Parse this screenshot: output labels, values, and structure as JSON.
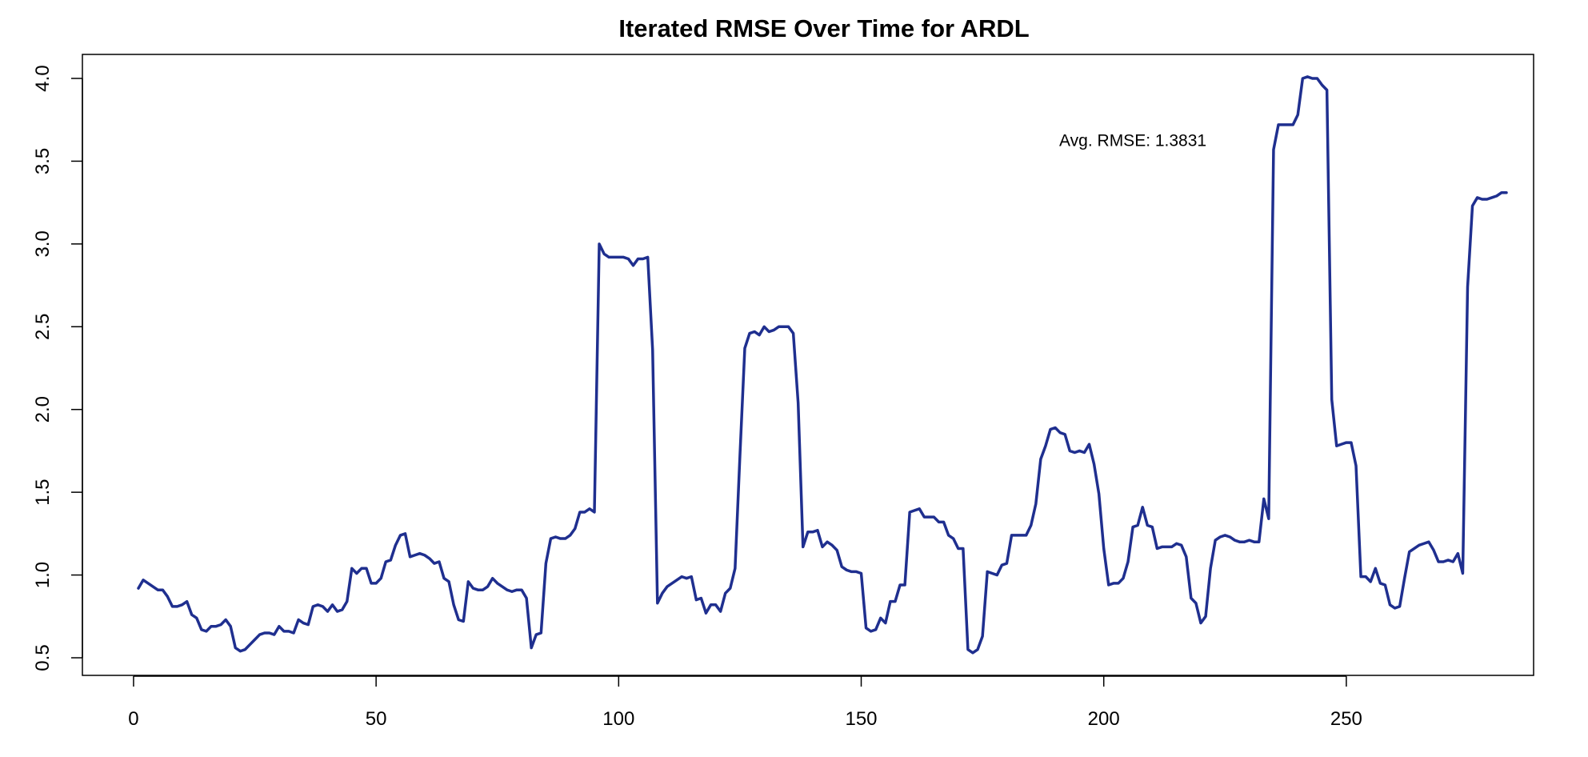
{
  "chart_data": {
    "type": "line",
    "title": "Iterated RMSE Over Time for ARDL",
    "xlabel": "",
    "ylabel": "",
    "xlim": [
      1,
      283
    ],
    "ylim": [
      0.5,
      4.0
    ],
    "x_ticks": [
      0,
      50,
      100,
      150,
      200,
      250
    ],
    "x_tick_labels": [
      "0",
      "50",
      "100",
      "150",
      "200",
      "250"
    ],
    "y_ticks": [
      0.5,
      1.0,
      1.5,
      2.0,
      2.5,
      3.0,
      3.5,
      4.0
    ],
    "y_tick_labels": [
      "0.5",
      "1.0",
      "1.5",
      "2.0",
      "2.5",
      "3.0",
      "3.5",
      "4.0"
    ],
    "grid": false,
    "legend": "none",
    "annotation": {
      "text": "Avg. RMSE: 1.3831",
      "x": 206,
      "y": 3.63
    },
    "series": [
      {
        "color": "#1f2f8f",
        "x_start": 1,
        "values": [
          0.92,
          0.97,
          0.95,
          0.93,
          0.91,
          0.91,
          0.87,
          0.81,
          0.81,
          0.82,
          0.84,
          0.76,
          0.74,
          0.67,
          0.66,
          0.69,
          0.69,
          0.7,
          0.73,
          0.69,
          0.56,
          0.54,
          0.55,
          0.58,
          0.61,
          0.64,
          0.65,
          0.65,
          0.64,
          0.69,
          0.66,
          0.66,
          0.65,
          0.73,
          0.71,
          0.7,
          0.81,
          0.82,
          0.81,
          0.78,
          0.82,
          0.78,
          0.79,
          0.84,
          1.04,
          1.01,
          1.04,
          1.04,
          0.95,
          0.95,
          0.98,
          1.08,
          1.09,
          1.18,
          1.24,
          1.25,
          1.11,
          1.12,
          1.13,
          1.12,
          1.1,
          1.07,
          1.08,
          0.98,
          0.96,
          0.82,
          0.73,
          0.72,
          0.96,
          0.92,
          0.91,
          0.91,
          0.93,
          0.98,
          0.95,
          0.93,
          0.91,
          0.9,
          0.91,
          0.91,
          0.86,
          0.56,
          0.64,
          0.65,
          1.07,
          1.22,
          1.23,
          1.22,
          1.22,
          1.24,
          1.28,
          1.38,
          1.38,
          1.4,
          1.38,
          3.0,
          2.94,
          2.92,
          2.92,
          2.92,
          2.92,
          2.91,
          2.87,
          2.91,
          2.91,
          2.92,
          2.36,
          0.83,
          0.89,
          0.93,
          0.95,
          0.97,
          0.99,
          0.98,
          0.99,
          0.85,
          0.86,
          0.77,
          0.82,
          0.82,
          0.78,
          0.89,
          0.92,
          1.04,
          1.72,
          2.37,
          2.46,
          2.47,
          2.45,
          2.5,
          2.47,
          2.48,
          2.5,
          2.5,
          2.5,
          2.46,
          2.04,
          1.17,
          1.26,
          1.26,
          1.27,
          1.17,
          1.2,
          1.18,
          1.15,
          1.05,
          1.03,
          1.02,
          1.02,
          1.01,
          0.68,
          0.66,
          0.67,
          0.74,
          0.71,
          0.84,
          0.84,
          0.94,
          0.94,
          1.38,
          1.39,
          1.4,
          1.35,
          1.35,
          1.35,
          1.32,
          1.32,
          1.24,
          1.22,
          1.16,
          1.16,
          0.55,
          0.53,
          0.55,
          0.63,
          1.02,
          1.01,
          1.0,
          1.06,
          1.07,
          1.24,
          1.24,
          1.24,
          1.24,
          1.3,
          1.43,
          1.7,
          1.78,
          1.88,
          1.89,
          1.86,
          1.85,
          1.75,
          1.74,
          1.75,
          1.74,
          1.79,
          1.67,
          1.49,
          1.16,
          0.94,
          0.95,
          0.95,
          0.98,
          1.08,
          1.29,
          1.3,
          1.41,
          1.3,
          1.29,
          1.16,
          1.17,
          1.17,
          1.17,
          1.19,
          1.18,
          1.11,
          0.86,
          0.83,
          0.71,
          0.75,
          1.04,
          1.21,
          1.23,
          1.24,
          1.23,
          1.21,
          1.2,
          1.2,
          1.21,
          1.2,
          1.2,
          1.46,
          1.34,
          3.57,
          3.72,
          3.72,
          3.72,
          3.72,
          3.78,
          4.0,
          4.01,
          4.0,
          4.0,
          3.96,
          3.93,
          2.06,
          1.78,
          1.79,
          1.8,
          1.8,
          1.66,
          0.99,
          0.99,
          0.96,
          1.04,
          0.95,
          0.94,
          0.82,
          0.8,
          0.81,
          0.98,
          1.14,
          1.16,
          1.18,
          1.19,
          1.2,
          1.15,
          1.08,
          1.08,
          1.09,
          1.08,
          1.13,
          1.01,
          2.74,
          3.23,
          3.28,
          3.27,
          3.27,
          3.28,
          3.29,
          3.31,
          3.31
        ]
      }
    ]
  }
}
